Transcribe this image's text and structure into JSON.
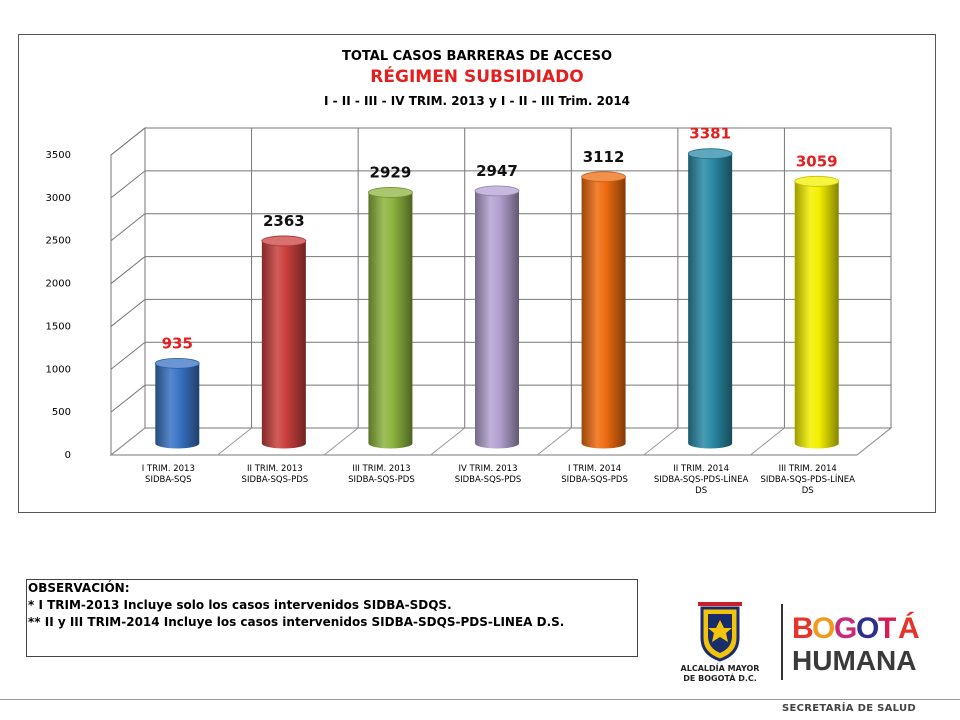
{
  "chart_data": {
    "type": "bar",
    "title": "TOTAL CASOS BARRERAS DE ACCESO",
    "subtitle": "RÉGIMEN SUBSIDIADO",
    "subtitle2": "I - II - III - IV TRIM. 2013  y I - II - III Trim. 2014",
    "categories": [
      [
        "I TRIM. 2013",
        "SIDBA-SQS"
      ],
      [
        "II TRIM. 2013",
        "SIDBA-SQS-PDS"
      ],
      [
        "III TRIM. 2013",
        "SIDBA-SQS-PDS"
      ],
      [
        "IV TRIM. 2013",
        "SIDBA-SQS-PDS"
      ],
      [
        "I TRIM. 2014",
        "SIDBA-SQS-PDS"
      ],
      [
        "II TRIM. 2014",
        "SIDBA-SQS-PDS-LÍNEA",
        "DS"
      ],
      [
        "III TRIM. 2014",
        "SIDBA-SQS-PDS-LÍNEA",
        "DS"
      ]
    ],
    "values": [
      935,
      2363,
      2929,
      2947,
      3112,
      3381,
      3059
    ],
    "data_labels": [
      "935",
      "2363",
      "2929",
      "2947",
      "3112",
      "3381",
      "3059"
    ],
    "bar_colors": [
      "#3a73c4",
      "#c9403d",
      "#8db43f",
      "#b3a2d1",
      "#ee6c10",
      "#2a8aa6",
      "#f4f000"
    ],
    "label_colors": [
      "#e3201f",
      "#111111",
      "#111111",
      "#111111",
      "#111111",
      "#e3201f",
      "#e3201f"
    ],
    "ylim": [
      0,
      3500
    ],
    "yticks": [
      0,
      500,
      1000,
      1500,
      2000,
      2500,
      3000,
      3500
    ],
    "grid": true,
    "style": "3d-cylinder"
  },
  "observation": {
    "heading": "OBSERVACIÓN:",
    "line1": "* I TRIM-2013 Incluye solo los casos intervenidos SIDBA-SDQS.",
    "line2": "** II y III TRIM-2014 Incluye los casos intervenidos SIDBA-SDQS-PDS-LINEA D.S."
  },
  "logos": {
    "alcaldia_line1": "ALCALDÍA MAYOR",
    "alcaldia_line2": "DE BOGOTÁ D.C.",
    "bogota_word": "BOGOTÁ",
    "humana_word": "HUMANA",
    "bogota_letter_colors": [
      "#e4342b",
      "#f39a1e",
      "#c72b7a",
      "#2f2f8f",
      "#d81c50",
      "#e4342b"
    ]
  },
  "footer": {
    "text": "SECRETARÍA DE SALUD"
  }
}
